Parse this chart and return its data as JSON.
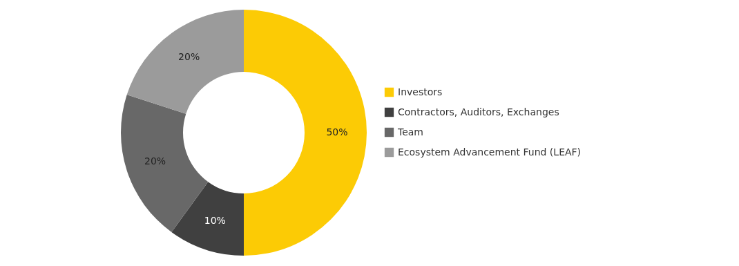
{
  "chart_data": {
    "type": "donut",
    "categories": [
      "Investors",
      "Contractors, Auditors, Exchanges",
      "Team",
      "Ecosystem Advancement Fund (LEAF)"
    ],
    "values": [
      50,
      10,
      20,
      20
    ],
    "colors": [
      "#fccb05",
      "#404040",
      "#686868",
      "#9b9b9b"
    ],
    "value_labels": [
      "50%",
      "10%",
      "20%",
      "20%"
    ],
    "legend": "right"
  }
}
